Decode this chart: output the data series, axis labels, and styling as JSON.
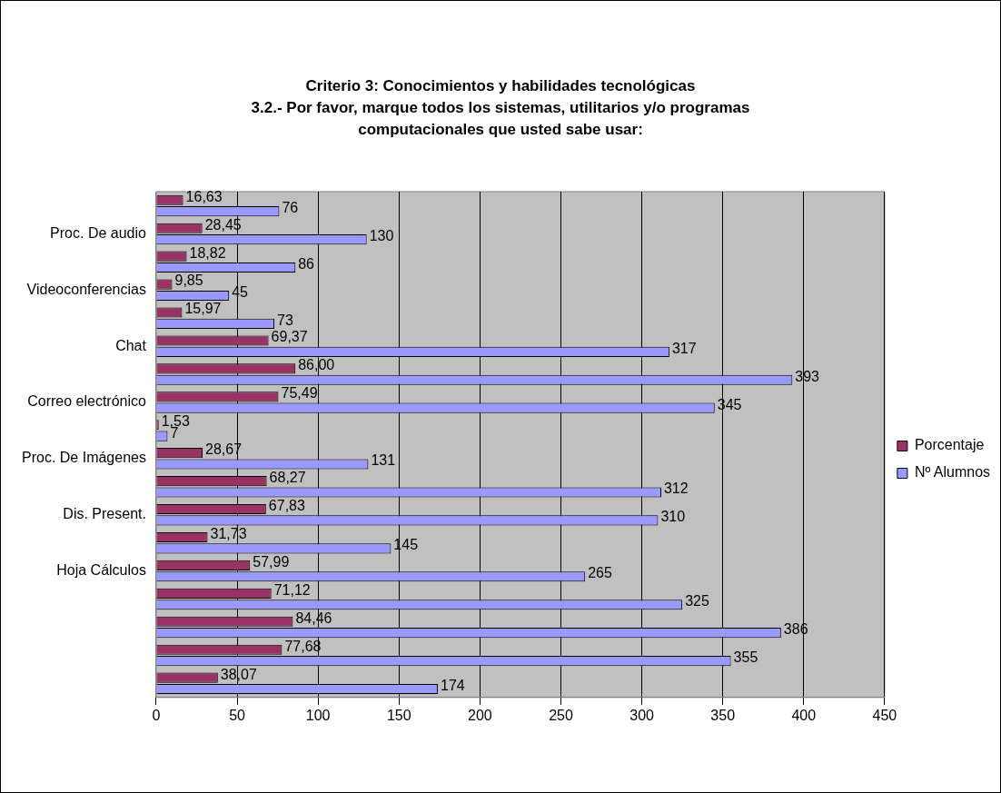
{
  "chart_data": {
    "type": "bar",
    "orientation": "horizontal",
    "title": "Criterio 3: Conocimientos y habilidades tecnológicas",
    "subtitle": "3.2.- Por favor, marque todos los sistemas, utilitarios y/o programas computacionales que usted sabe usar:",
    "categories": [
      null,
      "Proc. De audio",
      null,
      "Videoconferencias",
      null,
      "Chat",
      null,
      "Correo electrónico",
      null,
      "Proc. De Imágenes",
      null,
      "Dis. Present.",
      null,
      "Hoja Cálculos",
      null,
      null,
      null,
      null
    ],
    "series": [
      {
        "name": "Porcentaje",
        "color": "#993366",
        "values": [
          16.63,
          28.45,
          18.82,
          9.85,
          15.97,
          69.37,
          86.0,
          75.49,
          1.53,
          28.67,
          68.27,
          67.83,
          31.73,
          57.99,
          71.12,
          84.46,
          77.68,
          38.07
        ],
        "value_labels": [
          "16,63",
          "28,45",
          "18,82",
          "9,85",
          "15,97",
          "69,37",
          "86,00",
          "75,49",
          "1,53",
          "28,67",
          "68,27",
          "67,83",
          "31,73",
          "57,99",
          "71,12",
          "84,46",
          "77,68",
          "38,07"
        ]
      },
      {
        "name": "Nº Alumnos",
        "color": "#9999ff",
        "values": [
          76,
          130,
          86,
          45,
          73,
          317,
          393,
          345,
          7,
          131,
          312,
          310,
          145,
          265,
          325,
          386,
          355,
          174
        ],
        "value_labels": [
          "76",
          "130",
          "86",
          "45",
          "73",
          "317",
          "393",
          "345",
          "7",
          "131",
          "312",
          "310",
          "145",
          "265",
          "325",
          "386",
          "355",
          "174"
        ]
      }
    ],
    "xlim": [
      0,
      450
    ],
    "xticks": [
      0,
      50,
      100,
      150,
      200,
      250,
      300,
      350,
      400,
      450
    ],
    "grid": "x",
    "legend": "right"
  }
}
